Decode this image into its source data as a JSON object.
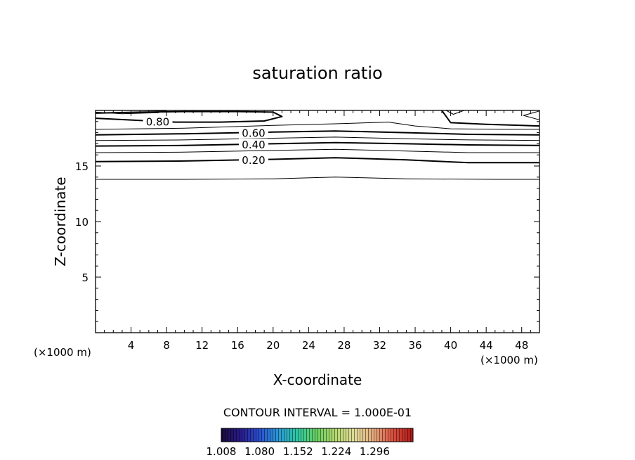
{
  "chart_data": {
    "type": "contour",
    "title": "saturation ratio",
    "xlabel": "X-coordinate",
    "ylabel": "Z-coordinate",
    "x_unit_left": "(×1000 m)",
    "x_unit_right": "(×1000 m)",
    "xlim": [
      0,
      50
    ],
    "ylim": [
      0,
      20
    ],
    "xticks": [
      4,
      8,
      12,
      16,
      20,
      24,
      28,
      32,
      36,
      40,
      44,
      48
    ],
    "xtick_labels": [
      "4",
      "8",
      "12",
      "16",
      "20",
      "24",
      "28",
      "32",
      "36",
      "40",
      "44",
      "48"
    ],
    "yticks": [
      5,
      10,
      15
    ],
    "ytick_labels": [
      "5",
      "10",
      "15"
    ],
    "contour_interval_text": "CONTOUR INTERVAL = 1.000E-01",
    "contour_interval": 0.1,
    "contours": [
      {
        "level": 0.1,
        "thick": false,
        "label": "",
        "x": [
          0,
          10,
          20,
          27,
          35,
          45,
          50
        ],
        "z": [
          13.8,
          13.8,
          13.85,
          14.0,
          13.85,
          13.8,
          13.8
        ]
      },
      {
        "level": 0.2,
        "thick": true,
        "label": "0.20",
        "label_x": 17.8,
        "x": [
          0,
          10,
          20,
          27,
          35,
          42,
          50
        ],
        "z": [
          15.4,
          15.45,
          15.6,
          15.75,
          15.55,
          15.3,
          15.3
        ]
      },
      {
        "level": 0.3,
        "thick": false,
        "label": "",
        "x": [
          0,
          10,
          20,
          27,
          35,
          42,
          50
        ],
        "z": [
          16.2,
          16.25,
          16.4,
          16.5,
          16.35,
          16.2,
          16.2
        ]
      },
      {
        "level": 0.4,
        "thick": true,
        "label": "0.40",
        "label_x": 17.8,
        "x": [
          0,
          10,
          20,
          27,
          35,
          42,
          50
        ],
        "z": [
          16.8,
          16.85,
          17.0,
          17.1,
          17.0,
          16.9,
          16.85
        ]
      },
      {
        "level": 0.5,
        "thick": false,
        "label": "",
        "x": [
          0,
          10,
          20,
          27,
          35,
          42,
          50
        ],
        "z": [
          17.3,
          17.35,
          17.5,
          17.6,
          17.45,
          17.35,
          17.3
        ]
      },
      {
        "level": 0.6,
        "thick": true,
        "label": "0.60",
        "label_x": 17.8,
        "x": [
          0,
          10,
          20,
          27,
          35,
          42,
          50
        ],
        "z": [
          17.8,
          17.9,
          18.05,
          18.15,
          18.0,
          17.85,
          17.8
        ]
      },
      {
        "level": 0.7,
        "thick": false,
        "label": "",
        "x": [
          0,
          10,
          20,
          27,
          33,
          36,
          40,
          46,
          50
        ],
        "z": [
          18.3,
          18.4,
          18.65,
          18.8,
          18.95,
          18.6,
          18.35,
          18.3,
          18.3
        ]
      },
      {
        "level": 0.8,
        "thick": true,
        "label": "0.80",
        "label_x": 7.0,
        "x": [
          0,
          5,
          9,
          14,
          19,
          21,
          20,
          16,
          10,
          5,
          0
        ],
        "z": [
          19.3,
          19.1,
          18.95,
          18.95,
          19.05,
          19.45,
          19.85,
          19.9,
          19.9,
          19.85,
          19.75
        ]
      },
      {
        "level": 0.8,
        "thick": true,
        "label": "",
        "x": [
          39,
          40,
          44,
          48,
          50
        ],
        "z": [
          20,
          18.9,
          18.75,
          18.65,
          18.6
        ]
      },
      {
        "level": 0.9,
        "thick": false,
        "label": "",
        "x": [
          0,
          3,
          7,
          8,
          5,
          0
        ],
        "z": [
          19.85,
          19.7,
          19.8,
          19.95,
          20,
          20
        ]
      },
      {
        "level": 0.9,
        "thick": false,
        "label": "",
        "x": [
          39.5,
          40.3,
          41.5
        ],
        "z": [
          20,
          19.65,
          20
        ]
      },
      {
        "level": 0.9,
        "thick": false,
        "label": "",
        "x": [
          50,
          48.2,
          50
        ],
        "z": [
          19.95,
          19.55,
          19.15
        ]
      }
    ],
    "colorbar": {
      "labels": [
        "1.008",
        "1.080",
        "1.152",
        "1.224",
        "1.296"
      ],
      "min": 1.008,
      "max": 1.368,
      "colors": [
        "#1a0a3c",
        "#2a1a8c",
        "#2a4fd0",
        "#2a9ad8",
        "#2ec9a0",
        "#6ad060",
        "#b7d870",
        "#e2dc9a",
        "#e5a57a",
        "#d94a3a",
        "#b01818"
      ]
    }
  }
}
